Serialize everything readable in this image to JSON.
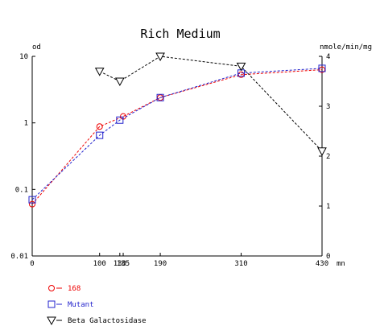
{
  "chart_data": {
    "type": "line",
    "title": "Rich Medium",
    "left_axis": {
      "label": "od",
      "scale": "log",
      "range": [
        0.01,
        10
      ],
      "ticks": [
        {
          "value": 0.01,
          "label": "0.01"
        },
        {
          "value": 0.1,
          "label": "0.1"
        },
        {
          "value": 1,
          "label": "1"
        },
        {
          "value": 10,
          "label": "10"
        }
      ]
    },
    "right_axis": {
      "label": "nmole/min/mg",
      "scale": "linear",
      "range": [
        0,
        4
      ],
      "ticks": [
        {
          "value": 0,
          "label": "0"
        },
        {
          "value": 1,
          "label": "1"
        },
        {
          "value": 2,
          "label": "2"
        },
        {
          "value": 3,
          "label": "3"
        },
        {
          "value": 4,
          "label": "4"
        }
      ]
    },
    "x_axis": {
      "label": "mn",
      "range": [
        0,
        430
      ],
      "ticks": [
        {
          "value": 0,
          "label": "0"
        },
        {
          "value": 100,
          "label": "100"
        },
        {
          "value": 130,
          "label": "130"
        },
        {
          "value": 135,
          "label": "135"
        },
        {
          "value": 190,
          "label": "190"
        },
        {
          "value": 310,
          "label": "310"
        },
        {
          "value": 430,
          "label": "430"
        }
      ]
    },
    "series": [
      {
        "name": "168",
        "axis": "left",
        "marker": "circle",
        "color": "#ee0000",
        "points": [
          {
            "x": 0,
            "y": 0.06
          },
          {
            "x": 100,
            "y": 0.88
          },
          {
            "x": 135,
            "y": 1.25
          },
          {
            "x": 190,
            "y": 2.4
          },
          {
            "x": 310,
            "y": 5.3
          },
          {
            "x": 430,
            "y": 6.3
          }
        ]
      },
      {
        "name": "Mutant",
        "axis": "left",
        "marker": "square",
        "color": "#2222cc",
        "points": [
          {
            "x": 0,
            "y": 0.07
          },
          {
            "x": 100,
            "y": 0.65
          },
          {
            "x": 130,
            "y": 1.1
          },
          {
            "x": 190,
            "y": 2.4
          },
          {
            "x": 310,
            "y": 5.6
          },
          {
            "x": 430,
            "y": 6.6
          }
        ]
      },
      {
        "name": "Beta Galactosidase",
        "axis": "right",
        "marker": "triangle-down",
        "color": "#000000",
        "points": [
          {
            "x": 100,
            "y": 3.7
          },
          {
            "x": 130,
            "y": 3.5
          },
          {
            "x": 190,
            "y": 4.0
          },
          {
            "x": 310,
            "y": 3.8
          },
          {
            "x": 430,
            "y": 2.1
          }
        ]
      }
    ],
    "legend": {
      "placement": "bottom-left"
    }
  }
}
